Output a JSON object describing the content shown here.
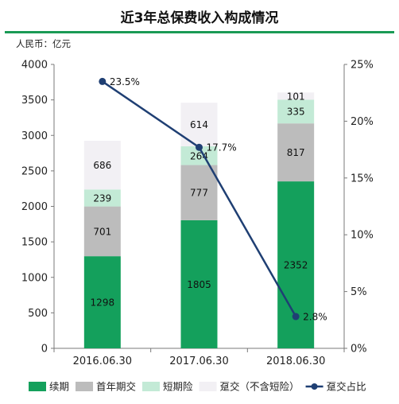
{
  "title": "近3年总保费收入构成情况",
  "unit_label": "人民币：亿元",
  "chart_data": {
    "type": "bar",
    "stacked": true,
    "secondary_type": "line",
    "categories": [
      "2016.06.30",
      "2017.06.30",
      "2018.06.30"
    ],
    "series": [
      {
        "name": "续期",
        "color": "#14a05c",
        "values": [
          1298,
          1805,
          2352
        ]
      },
      {
        "name": "首年期交",
        "color": "#bcbcbc",
        "values": [
          701,
          777,
          817
        ]
      },
      {
        "name": "短期险",
        "color": "#c3ead6",
        "values": [
          239,
          264,
          335
        ]
      },
      {
        "name": "趸交（不含短险）",
        "color": "#f2f0f4",
        "values": [
          686,
          614,
          101
        ]
      }
    ],
    "line_series": {
      "name": "趸交占比",
      "color": "#1f3f73",
      "values": [
        23.5,
        17.7,
        2.8
      ],
      "labels": [
        "23.5%",
        "17.7%",
        "2.8%"
      ],
      "axis": "right"
    },
    "y_left": {
      "min": 0,
      "max": 4000,
      "ticks": [
        "0",
        "500",
        "1000",
        "1500",
        "2000",
        "2500",
        "3000",
        "3500",
        "4000"
      ]
    },
    "y_right": {
      "min": 0,
      "max": 25,
      "ticks": [
        "0%",
        "5%",
        "10%",
        "15%",
        "20%",
        "25%"
      ]
    },
    "legend_position": "bottom",
    "grid": false
  }
}
